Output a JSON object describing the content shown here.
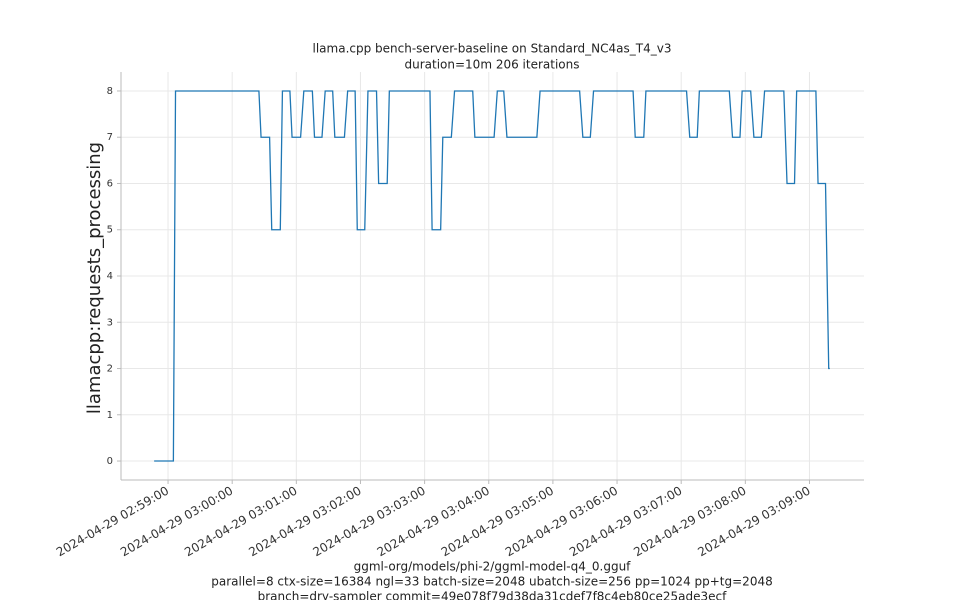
{
  "chart_data": {
    "type": "line",
    "title": "llama.cpp bench-server-baseline on Standard_NC4as_T4_v3",
    "subtitle": "duration=10m 206 iterations",
    "y_label": "llamacpp:requests_processing",
    "footer": [
      "ggml-org/models/phi-2/ggml-model-q4_0.gguf",
      "parallel=8 ctx-size=16384 ngl=33 batch-size=2048 ubatch-size=256 pp=1024 pp+tg=2048",
      "branch=dry-sampler commit=49e078f79d38da31cdef7f8c4eb80ce25ade3ecf"
    ],
    "color": "#1f77b4",
    "grid": true,
    "x": [
      "2024-04-29 02:58:47",
      "2024-04-29 02:59:05",
      "2024-04-29 02:59:07",
      "2024-04-29 03:00:25",
      "2024-04-29 03:00:27",
      "2024-04-29 03:00:35",
      "2024-04-29 03:00:37",
      "2024-04-29 03:00:45",
      "2024-04-29 03:00:47",
      "2024-04-29 03:00:54",
      "2024-04-29 03:00:56",
      "2024-04-29 03:01:04",
      "2024-04-29 03:01:07",
      "2024-04-29 03:01:15",
      "2024-04-29 03:01:17",
      "2024-04-29 03:01:24",
      "2024-04-29 03:01:27",
      "2024-04-29 03:01:34",
      "2024-04-29 03:01:36",
      "2024-04-29 03:01:45",
      "2024-04-29 03:01:48",
      "2024-04-29 03:01:55",
      "2024-04-29 03:01:57",
      "2024-04-29 03:02:04",
      "2024-04-29 03:02:07",
      "2024-04-29 03:02:15",
      "2024-04-29 03:02:17",
      "2024-04-29 03:02:25",
      "2024-04-29 03:02:27",
      "2024-04-29 03:03:05",
      "2024-04-29 03:03:07",
      "2024-04-29 03:03:15",
      "2024-04-29 03:03:17",
      "2024-04-29 03:03:25",
      "2024-04-29 03:03:28",
      "2024-04-29 03:03:45",
      "2024-04-29 03:03:47",
      "2024-04-29 03:04:05",
      "2024-04-29 03:04:08",
      "2024-04-29 03:04:14",
      "2024-04-29 03:04:17",
      "2024-04-29 03:04:45",
      "2024-04-29 03:04:48",
      "2024-04-29 03:05:25",
      "2024-04-29 03:05:28",
      "2024-04-29 03:05:35",
      "2024-04-29 03:05:38",
      "2024-04-29 03:06:15",
      "2024-04-29 03:06:17",
      "2024-04-29 03:06:25",
      "2024-04-29 03:06:27",
      "2024-04-29 03:07:05",
      "2024-04-29 03:07:08",
      "2024-04-29 03:07:15",
      "2024-04-29 03:07:17",
      "2024-04-29 03:07:45",
      "2024-04-29 03:07:48",
      "2024-04-29 03:07:55",
      "2024-04-29 03:07:57",
      "2024-04-29 03:08:05",
      "2024-04-29 03:08:08",
      "2024-04-29 03:08:15",
      "2024-04-29 03:08:18",
      "2024-04-29 03:08:36",
      "2024-04-29 03:08:39",
      "2024-04-29 03:08:46",
      "2024-04-29 03:08:48",
      "2024-04-29 03:09:06",
      "2024-04-29 03:09:08",
      "2024-04-29 03:09:15",
      "2024-04-29 03:09:18",
      "2024-04-29 03:09:19"
    ],
    "values": [
      0,
      0,
      8,
      8,
      7,
      7,
      5,
      5,
      8,
      8,
      7,
      7,
      8,
      8,
      7,
      7,
      8,
      8,
      7,
      7,
      8,
      8,
      5,
      5,
      8,
      8,
      6,
      6,
      8,
      8,
      5,
      5,
      7,
      7,
      8,
      8,
      7,
      7,
      8,
      8,
      7,
      7,
      8,
      8,
      7,
      7,
      8,
      8,
      7,
      7,
      8,
      8,
      7,
      7,
      8,
      8,
      7,
      7,
      8,
      8,
      7,
      7,
      8,
      8,
      6,
      6,
      8,
      8,
      6,
      6,
      2,
      2
    ],
    "xlim": [
      "2024-04-29 02:58:16",
      "2024-04-29 03:09:51"
    ],
    "xticks": [
      "2024-04-29 02:59:00",
      "2024-04-29 03:00:00",
      "2024-04-29 03:01:00",
      "2024-04-29 03:02:00",
      "2024-04-29 03:03:00",
      "2024-04-29 03:04:00",
      "2024-04-29 03:05:00",
      "2024-04-29 03:06:00",
      "2024-04-29 03:07:00",
      "2024-04-29 03:08:00",
      "2024-04-29 03:09:00"
    ],
    "ylim": [
      -0.41,
      8.41
    ],
    "yticks": [
      0,
      1,
      2,
      3,
      4,
      5,
      6,
      7,
      8
    ]
  }
}
